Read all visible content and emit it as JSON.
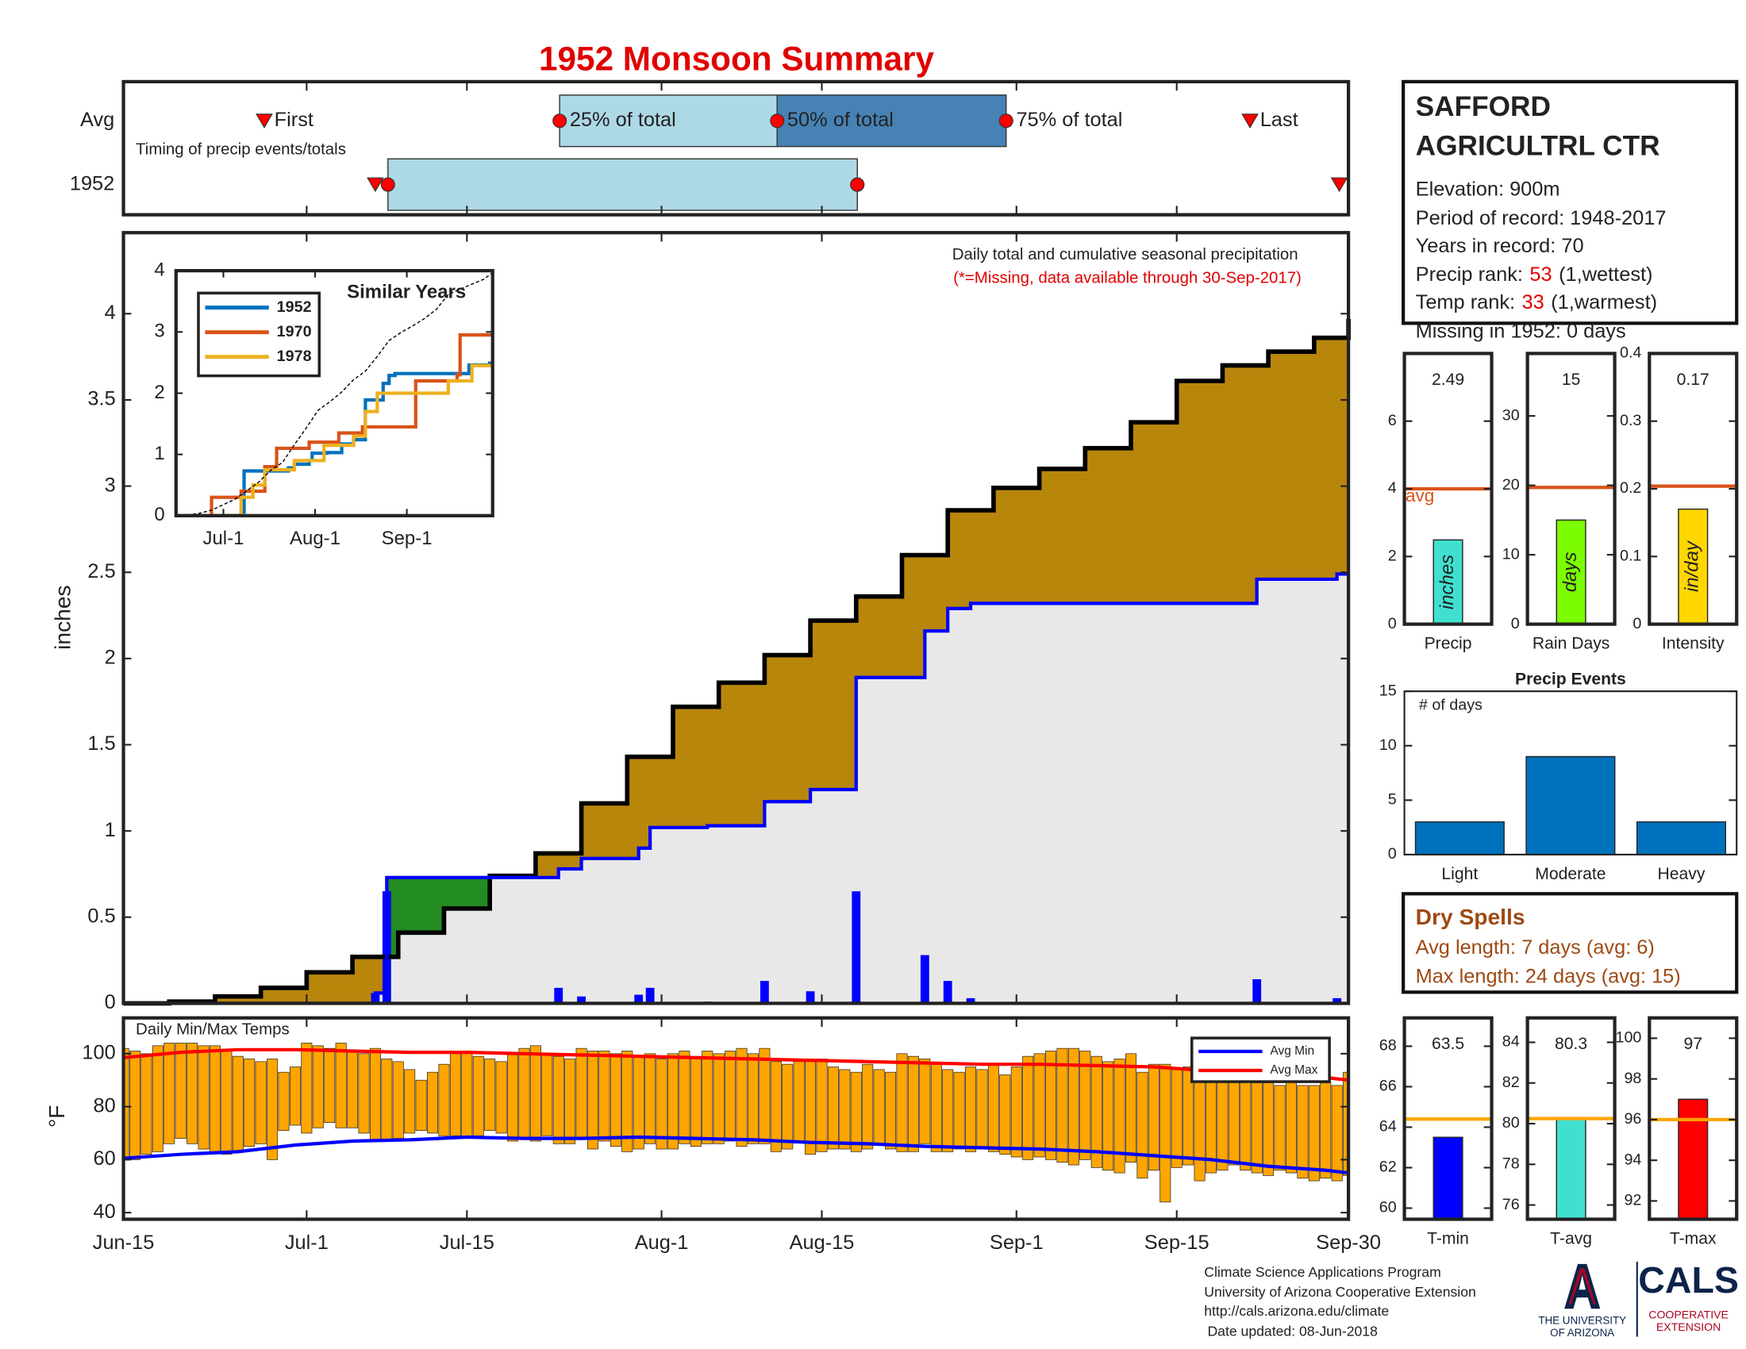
{
  "title": "1952 Monsoon Summary",
  "chart_data": [
    {
      "type": "timing",
      "categories": [
        "Avg",
        "1952"
      ],
      "annotation": "Timing of precip events/totals",
      "xlim": [
        0,
        107
      ],
      "labels": {
        "first": "First",
        "p25": "25% of total",
        "p50": "50% of total",
        "p75": "75% of total",
        "last": "Last"
      },
      "rows": [
        {
          "first": 12.3,
          "p25": 38.1,
          "p50": 57.1,
          "p75": 77.1,
          "last": 98.4
        },
        {
          "first": 22,
          "p25": 23.1,
          "p50": 64.1,
          "p75": 64.1,
          "last": 106.2
        }
      ],
      "box_colors": [
        "#add8e6",
        "#4682b4"
      ],
      "marker_color": "#ff0000"
    },
    {
      "type": "cumulative",
      "annotations": [
        "Daily total and cumulative seasonal precipitation",
        "(*=Missing, data available through 30-Sep-2017)"
      ],
      "ylabel": "inches",
      "xlim": [
        0,
        107
      ],
      "ylim": [
        0,
        4.47
      ],
      "yticks": [
        0,
        0.5,
        1,
        1.5,
        2,
        2.5,
        3,
        3.5,
        4
      ],
      "series": [
        {
          "color": "#000000",
          "fill": "#b8860b",
          "x": [
            0,
            4,
            8,
            12,
            16,
            20,
            24,
            28,
            32,
            36,
            40,
            44,
            48,
            52,
            56,
            60,
            64,
            68,
            72,
            76,
            80,
            84,
            88,
            92,
            96,
            100,
            104,
            107
          ],
          "values": [
            0,
            0.01,
            0.04,
            0.09,
            0.18,
            0.27,
            0.41,
            0.55,
            0.74,
            0.87,
            1.16,
            1.43,
            1.72,
            1.86,
            2.02,
            2.22,
            2.36,
            2.6,
            2.86,
            2.99,
            3.1,
            3.22,
            3.37,
            3.61,
            3.7,
            3.78,
            3.86,
            3.97
          ]
        },
        {
          "color": "#0000ff",
          "fill": "#e8e8e8",
          "x": [
            0,
            22,
            23,
            38,
            40,
            45,
            46,
            51,
            56,
            60,
            64,
            70,
            72,
            74,
            99,
            106
          ],
          "values": [
            0,
            0.06,
            0.73,
            0.78,
            0.84,
            0.9,
            1.02,
            1.03,
            1.17,
            1.24,
            1.89,
            2.16,
            2.29,
            2.32,
            2.46,
            2.49
          ]
        }
      ],
      "above_color": "#228b22",
      "bars": {
        "color": "#0000ff",
        "x": [
          22,
          23,
          38,
          40,
          45,
          46,
          51,
          56,
          60,
          64,
          70,
          72,
          74,
          99,
          106
        ],
        "values": [
          0.06,
          0.65,
          0.09,
          0.04,
          0.05,
          0.09,
          0.01,
          0.13,
          0.07,
          0.65,
          0.28,
          0.13,
          0.03,
          0.14,
          0.03
        ]
      }
    },
    {
      "type": "inset",
      "title": "Similar Years",
      "xlim": [
        0,
        107
      ],
      "xticks": [
        {
          "value": 16,
          "label": "Jul-1"
        },
        {
          "value": 47,
          "label": "Aug-1"
        },
        {
          "value": 78,
          "label": "Sep-1"
        }
      ],
      "ylim": [
        0,
        4
      ],
      "yticks": [
        0,
        1,
        2,
        3,
        4
      ],
      "series": [
        {
          "name": "1952",
          "color": "#0072bd",
          "x": [
            0,
            22,
            23,
            38,
            40,
            45,
            46,
            51,
            56,
            60,
            64,
            70,
            72,
            74,
            99,
            106
          ],
          "values": [
            0,
            0.06,
            0.73,
            0.78,
            0.84,
            0.9,
            1.02,
            1.03,
            1.17,
            1.24,
            1.89,
            2.16,
            2.29,
            2.32,
            2.46,
            2.49
          ]
        },
        {
          "name": "1970",
          "color": "#d95319",
          "x": [
            0,
            12,
            22,
            30,
            34,
            45,
            55,
            63,
            81,
            95,
            96
          ],
          "values": [
            0,
            0.3,
            0.4,
            0.8,
            1.1,
            1.2,
            1.35,
            1.45,
            2.2,
            2.3,
            2.95
          ]
        },
        {
          "name": "1978",
          "color": "#edb120",
          "x": [
            0,
            22,
            26,
            30,
            40,
            50,
            60,
            64,
            68,
            92,
            100
          ],
          "values": [
            0,
            0.3,
            0.5,
            0.75,
            0.9,
            1.15,
            1.3,
            1.7,
            2.0,
            2.2,
            2.45
          ]
        },
        {
          "color": "#000000",
          "dashed": true,
          "x": [
            0,
            4,
            8,
            12,
            16,
            20,
            24,
            28,
            32,
            36,
            40,
            44,
            48,
            52,
            56,
            60,
            64,
            68,
            72,
            76,
            80,
            84,
            88,
            92,
            96,
            100,
            104,
            107
          ],
          "values": [
            0,
            0.01,
            0.04,
            0.09,
            0.18,
            0.27,
            0.41,
            0.55,
            0.74,
            0.87,
            1.16,
            1.43,
            1.72,
            1.86,
            2.02,
            2.22,
            2.36,
            2.6,
            2.86,
            2.99,
            3.1,
            3.22,
            3.37,
            3.61,
            3.7,
            3.78,
            3.86,
            3.97
          ]
        }
      ]
    },
    {
      "type": "range_bar",
      "title": "Daily Min/Max Temps",
      "ylabel": "°F",
      "xlim": [
        0,
        107
      ],
      "xticks": [
        {
          "value": 0,
          "label": "Jun-15"
        },
        {
          "value": 16,
          "label": "Jul-1"
        },
        {
          "value": 30,
          "label": "Jul-15"
        },
        {
          "value": 47,
          "label": "Aug-1"
        },
        {
          "value": 61,
          "label": "Aug-15"
        },
        {
          "value": 78,
          "label": "Sep-1"
        },
        {
          "value": 92,
          "label": "Sep-15"
        },
        {
          "value": 107,
          "label": "Sep-30"
        }
      ],
      "ylim": [
        37.5,
        113.5
      ],
      "yticks": [
        40,
        60,
        80,
        100
      ],
      "bars": {
        "color": "#ffa500",
        "max": [
          102,
          101,
          100,
          103,
          104,
          104,
          104,
          103,
          103,
          101,
          99,
          98,
          97,
          98,
          93,
          95,
          104,
          103,
          102,
          104,
          101,
          100,
          102,
          98,
          97,
          94,
          90,
          93,
          96,
          100,
          101,
          99,
          98,
          97,
          100,
          102,
          103,
          100,
          99,
          98,
          102,
          101,
          101,
          100,
          101,
          99,
          100,
          98,
          100,
          101,
          99,
          101,
          100,
          101,
          102,
          100,
          102,
          97,
          96,
          97,
          97,
          98,
          95,
          94,
          93,
          96,
          94,
          93,
          100,
          99,
          98,
          96,
          94,
          93,
          95,
          94,
          96,
          92,
          95,
          99,
          100,
          101,
          102,
          102,
          101,
          99,
          97,
          98,
          100,
          93,
          96,
          96,
          94,
          95,
          93,
          91,
          92,
          92,
          91,
          89,
          89,
          88,
          90,
          88,
          88,
          89,
          88,
          93
        ],
        "min": [
          61,
          60,
          62,
          63,
          66,
          68,
          66,
          64,
          63,
          62,
          63,
          65,
          66,
          60,
          71,
          73,
          70,
          72,
          74,
          72,
          72,
          70,
          67,
          67,
          68,
          70,
          71,
          70,
          69,
          69,
          68,
          69,
          71,
          70,
          67,
          68,
          67,
          69,
          66,
          66,
          68,
          64,
          67,
          65,
          63,
          64,
          66,
          64,
          64,
          66,
          65,
          66,
          66,
          67,
          65,
          66,
          66,
          63,
          64,
          67,
          62,
          63,
          64,
          64,
          63,
          64,
          66,
          64,
          63,
          63,
          66,
          63,
          63,
          64,
          63,
          64,
          63,
          62,
          61,
          60,
          61,
          60,
          59,
          58,
          60,
          57,
          56,
          55,
          59,
          53,
          56,
          44,
          57,
          58,
          52,
          55,
          56,
          58,
          56,
          55,
          54,
          56,
          55,
          53,
          52,
          53,
          52,
          54
        ]
      },
      "series": [
        {
          "name": "Avg Min",
          "color": "#0000ff",
          "x": [
            0,
            5,
            10,
            15,
            20,
            25,
            30,
            35,
            40,
            45,
            50,
            55,
            60,
            65,
            70,
            75,
            80,
            85,
            90,
            95,
            100,
            105,
            107
          ],
          "values": [
            60.5,
            62,
            63,
            65.5,
            67,
            67.5,
            68.5,
            68,
            68,
            68.5,
            68,
            67.5,
            66.5,
            66,
            65,
            64.5,
            64,
            63,
            61.5,
            60,
            57.5,
            56,
            55
          ]
        },
        {
          "name": "Avg Max",
          "color": "#ff0000",
          "x": [
            0,
            5,
            10,
            15,
            20,
            25,
            30,
            35,
            40,
            45,
            50,
            55,
            60,
            65,
            70,
            75,
            80,
            85,
            90,
            95,
            100,
            105,
            107
          ],
          "values": [
            98.5,
            100.5,
            101.5,
            101.5,
            101,
            100.5,
            100.5,
            100,
            99.5,
            99,
            98.5,
            98,
            97.5,
            97,
            96.5,
            96,
            96,
            95.5,
            95,
            93.5,
            92,
            91,
            90
          ]
        }
      ]
    },
    {
      "type": "gauge",
      "categories": [
        "Precip"
      ],
      "values": [
        2.49
      ],
      "bar_label": "inches",
      "color": "#40e0d0",
      "avg": 4.0,
      "avg_label": "avg",
      "avg_color": "#d95319",
      "ylim": [
        0,
        8
      ],
      "yticks": [
        0,
        2,
        4,
        6
      ]
    },
    {
      "type": "gauge",
      "categories": [
        "Rain Days"
      ],
      "values": [
        15
      ],
      "bar_label": "days",
      "color": "#7cfc00",
      "avg": 19.7,
      "avg_color": "#d95319",
      "ylim": [
        0,
        39
      ],
      "yticks": [
        0,
        10,
        20,
        30
      ]
    },
    {
      "type": "gauge",
      "categories": [
        "Intensity"
      ],
      "values": [
        0.17
      ],
      "bar_label": "in/day",
      "color": "#ffd700",
      "avg": 0.204,
      "avg_color": "#d95319",
      "ylim": [
        0,
        0.4
      ],
      "yticks": [
        0,
        0.1,
        0.2,
        0.3,
        0.4
      ]
    },
    {
      "type": "bar",
      "title": "Precip Events",
      "annotation": "# of days",
      "categories": [
        "Light",
        "Moderate",
        "Heavy"
      ],
      "values": [
        3,
        9,
        3
      ],
      "color": "#0072bd",
      "ylim": [
        0,
        15
      ],
      "yticks": [
        0,
        5,
        10,
        15
      ]
    },
    {
      "type": "gauge",
      "categories": [
        "T-min"
      ],
      "values": [
        63.5
      ],
      "color": "#0000ff",
      "avg": 64.4,
      "avg_color": "#ffa500",
      "ylim": [
        59.45,
        69.4
      ],
      "yticks": [
        60,
        62,
        64,
        66,
        68
      ]
    },
    {
      "type": "gauge",
      "categories": [
        "T-avg"
      ],
      "values": [
        80.3
      ],
      "color": "#40e0d0",
      "avg": 80.25,
      "avg_color": "#ffa500",
      "ylim": [
        75.3,
        85.2
      ],
      "yticks": [
        76,
        78,
        80,
        82,
        84
      ]
    },
    {
      "type": "gauge",
      "categories": [
        "T-max"
      ],
      "values": [
        97
      ],
      "color": "#ff0000",
      "avg": 96,
      "avg_color": "#ffa500",
      "ylim": [
        91.1,
        101
      ],
      "yticks": [
        92,
        94,
        96,
        98,
        100
      ]
    }
  ],
  "station": {
    "name": [
      "SAFFORD",
      "AGRICULTRL CTR"
    ],
    "elevation": "Elevation: 900m",
    "period": "Period of record: 1948-2017",
    "years": "Years in record: 70",
    "precip_rank_label": "Precip rank:",
    "precip_rank": 53,
    "precip_rank_note": "(1,wettest)",
    "temp_rank_label": "Temp rank:",
    "temp_rank": 33,
    "temp_rank_note": "(1,warmest)",
    "missing": "Missing in 1952: 0 days"
  },
  "dry_spells": {
    "title": "Dry Spells",
    "lines": [
      "Avg length: 7 days (avg: 6)",
      "Max length: 24 days (avg: 15)"
    ]
  },
  "footer": [
    "Climate Science Applications Program",
    "University of Arizona Cooperative Extension",
    "http://cals.arizona.edu/climate",
    "Date updated: 08-Jun-2018"
  ],
  "logo": {
    "university": [
      "THE UNIVERSITY",
      "OF ARIZONA"
    ],
    "cals": "CALS",
    "extension": [
      "COOPERATIVE",
      "EXTENSION"
    ]
  }
}
